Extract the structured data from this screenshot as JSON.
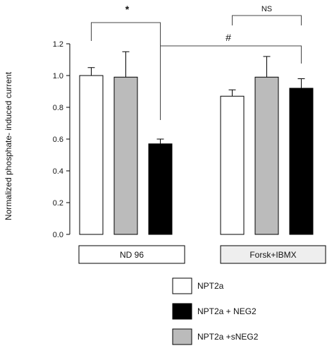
{
  "chart_data": {
    "type": "bar",
    "ylabel": "Normalized phosphate- induced current",
    "ylim": [
      0,
      1.2
    ],
    "yticks": [
      "0.0",
      "0.2",
      "0.4",
      "0.6",
      "0.8",
      "1.0",
      "1.2"
    ],
    "grid": false,
    "groups": [
      {
        "label": "ND 96",
        "box_fill": "#ffffff",
        "bars": [
          {
            "series": "NPT2a",
            "value": 1.0,
            "error": 0.05
          },
          {
            "series": "NPT2a +sNEG2",
            "value": 0.99,
            "error": 0.16
          },
          {
            "series": "NPT2a + NEG2",
            "value": 0.57,
            "error": 0.03
          }
        ]
      },
      {
        "label": "Forsk+IBMX",
        "box_fill": "#eeeeee",
        "bars": [
          {
            "series": "NPT2a",
            "value": 0.87,
            "error": 0.04
          },
          {
            "series": "NPT2a +sNEG2",
            "value": 0.99,
            "error": 0.13
          },
          {
            "series": "NPT2a + NEG2",
            "value": 0.92,
            "error": 0.06
          }
        ]
      }
    ],
    "series": [
      {
        "name": "NPT2a",
        "color": "#ffffff"
      },
      {
        "name": "NPT2a + NEG2",
        "color": "#000000"
      },
      {
        "name": "NPT2a +sNEG2",
        "color": "#bbbbbb"
      }
    ],
    "annotations": [
      {
        "text": "*"
      },
      {
        "text": "NS"
      },
      {
        "text": "#"
      }
    ],
    "legend_position": "bottom-right"
  }
}
